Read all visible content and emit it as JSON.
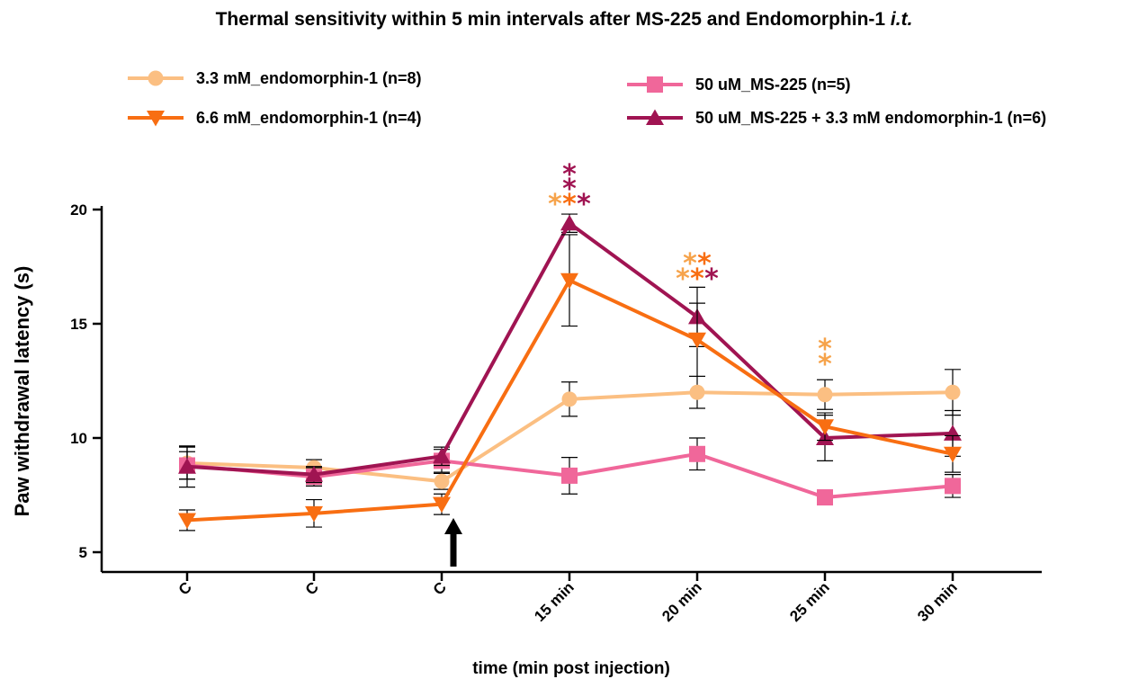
{
  "chart_data": {
    "type": "line",
    "title": "Thermal sensitivity within 5 min intervals after MS-225 and Endomorphin-1 ",
    "title_italic": "i.t.",
    "xlabel": "time (min post injection)",
    "ylabel": "Paw withdrawal latency (s)",
    "categories": [
      "C",
      "C",
      "C",
      "15 min",
      "20 min",
      "25 min",
      "30 min"
    ],
    "ylim": [
      4,
      20
    ],
    "yticks": [
      5,
      10,
      15,
      20
    ],
    "grid": false,
    "legend_position": "top",
    "series": [
      {
        "name": "3.3 mM_endomorphin-1 (n=8)",
        "color": "#FBBF82",
        "marker": "circle",
        "values": [
          8.9,
          8.7,
          8.1,
          11.7,
          12.0,
          11.9,
          12.0
        ],
        "errors": [
          0.7,
          0.35,
          0.35,
          0.75,
          0.7,
          0.65,
          1.0
        ]
      },
      {
        "name": "6.6 mM_endomorphin-1 (n=4)",
        "color": "#F86E12",
        "marker": "triangle-down",
        "values": [
          6.4,
          6.7,
          7.1,
          16.9,
          14.3,
          10.5,
          9.3
        ],
        "errors": [
          0.45,
          0.6,
          0.45,
          2.0,
          1.6,
          0.6,
          0.8
        ]
      },
      {
        "name": "50 uM_MS-225 (n=5)",
        "color": "#F0679A",
        "marker": "square",
        "values": [
          8.8,
          8.3,
          9.0,
          8.35,
          9.3,
          7.4,
          7.9
        ],
        "errors": [
          0.6,
          0.4,
          0.5,
          0.8,
          0.7,
          0.15,
          0.5
        ]
      },
      {
        "name": "50 uM_MS-225 + 3.3 mM endomorphin-1 (n=6)",
        "color": "#A01452",
        "marker": "triangle-up",
        "values": [
          8.75,
          8.4,
          9.2,
          19.4,
          15.3,
          10.0,
          10.2
        ],
        "errors": [
          0.9,
          0.35,
          0.4,
          0.4,
          1.3,
          1.0,
          1.0
        ]
      }
    ],
    "annotations": {
      "injection_arrow_after_category_index": 2,
      "significance": [
        {
          "text": "*",
          "color": "#A01452",
          "x_index": 3,
          "level": 3
        },
        {
          "text": "*",
          "color": "#A01452",
          "x_index": 3,
          "level": 2
        },
        {
          "text": "*",
          "color": "#F6A34B",
          "x_index": 3,
          "level": 1,
          "offset": -1
        },
        {
          "text": "*",
          "color": "#F86E12",
          "x_index": 3,
          "level": 1,
          "offset": 0
        },
        {
          "text": "*",
          "color": "#A01452",
          "x_index": 3,
          "level": 1,
          "offset": 1
        },
        {
          "text": "*",
          "color": "#F6A34B",
          "x_index": 4,
          "level": 2,
          "offset": -0.5
        },
        {
          "text": "*",
          "color": "#F86E12",
          "x_index": 4,
          "level": 2,
          "offset": 0.5
        },
        {
          "text": "*",
          "color": "#F6A34B",
          "x_index": 4,
          "level": 1,
          "offset": -1
        },
        {
          "text": "*",
          "color": "#F86E12",
          "x_index": 4,
          "level": 1,
          "offset": 0
        },
        {
          "text": "*",
          "color": "#A01452",
          "x_index": 4,
          "level": 1,
          "offset": 1
        },
        {
          "text": "*",
          "color": "#F6A34B",
          "x_index": 5,
          "level": 2,
          "offset": 0
        },
        {
          "text": "*",
          "color": "#F6A34B",
          "x_index": 5,
          "level": 1,
          "offset": 0
        }
      ]
    }
  }
}
